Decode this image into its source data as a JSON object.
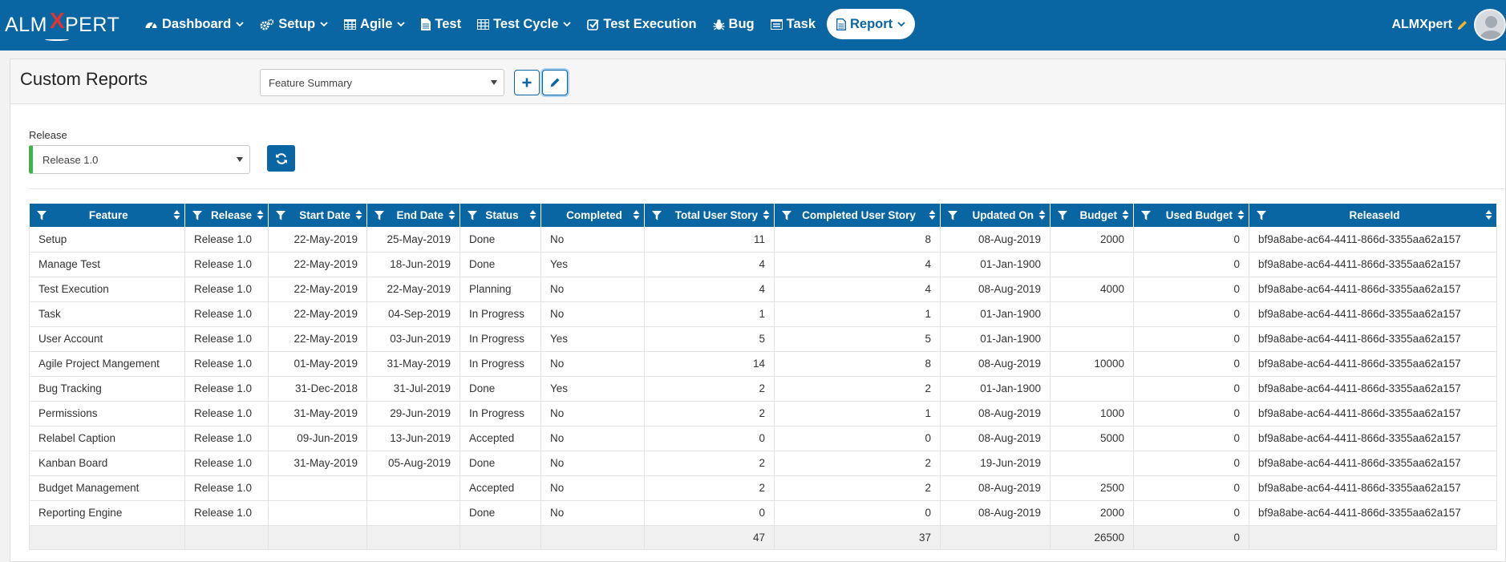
{
  "app": {
    "logo": "ALMXPERT",
    "logo_left": "ALM",
    "logo_x": "X",
    "logo_right": "PERT"
  },
  "nav": [
    {
      "label": "Dashboard",
      "icon": "dashboard-icon",
      "dropdown": true
    },
    {
      "label": "Setup",
      "icon": "cogs-icon",
      "dropdown": true
    },
    {
      "label": "Agile",
      "icon": "table-icon",
      "dropdown": true
    },
    {
      "label": "Test",
      "icon": "file-icon",
      "dropdown": false
    },
    {
      "label": "Test Cycle",
      "icon": "grid-icon",
      "dropdown": true
    },
    {
      "label": "Test Execution",
      "icon": "check-square-icon",
      "dropdown": false
    },
    {
      "label": "Bug",
      "icon": "bug-icon",
      "dropdown": false
    },
    {
      "label": "Task",
      "icon": "tasks-icon",
      "dropdown": false
    },
    {
      "label": "Report",
      "icon": "report-icon",
      "dropdown": true,
      "active": true
    }
  ],
  "user": {
    "name": "ALMXpert"
  },
  "page": {
    "title": "Custom Reports",
    "report_select": "Feature Summary",
    "release_label": "Release",
    "release_select": "Release 1.0"
  },
  "colors": {
    "primary": "#0a65a3",
    "release_marker": "#3cb44b"
  },
  "table": {
    "columns": [
      "Feature",
      "Release",
      "Start Date",
      "End Date",
      "Status",
      "Completed",
      "Total User Story",
      "Completed User Story",
      "Updated On",
      "Budget",
      "Used Budget",
      "ReleaseId"
    ],
    "rows": [
      [
        "Setup",
        "Release 1.0",
        "22-May-2019",
        "25-May-2019",
        "Done",
        "No",
        "11",
        "8",
        "08-Aug-2019",
        "2000",
        "0",
        "bf9a8abe-ac64-4411-866d-3355aa62a157"
      ],
      [
        "Manage Test",
        "Release 1.0",
        "22-May-2019",
        "18-Jun-2019",
        "Done",
        "Yes",
        "4",
        "4",
        "01-Jan-1900",
        "",
        "0",
        "bf9a8abe-ac64-4411-866d-3355aa62a157"
      ],
      [
        "Test Execution",
        "Release 1.0",
        "22-May-2019",
        "22-May-2019",
        "Planning",
        "No",
        "4",
        "4",
        "08-Aug-2019",
        "4000",
        "0",
        "bf9a8abe-ac64-4411-866d-3355aa62a157"
      ],
      [
        "Task",
        "Release 1.0",
        "22-May-2019",
        "04-Sep-2019",
        "In Progress",
        "No",
        "1",
        "1",
        "01-Jan-1900",
        "",
        "0",
        "bf9a8abe-ac64-4411-866d-3355aa62a157"
      ],
      [
        "User Account",
        "Release 1.0",
        "22-May-2019",
        "03-Jun-2019",
        "In Progress",
        "Yes",
        "5",
        "5",
        "01-Jan-1900",
        "",
        "0",
        "bf9a8abe-ac64-4411-866d-3355aa62a157"
      ],
      [
        "Agile Project Mangement",
        "Release 1.0",
        "01-May-2019",
        "31-May-2019",
        "In Progress",
        "No",
        "14",
        "8",
        "08-Aug-2019",
        "10000",
        "0",
        "bf9a8abe-ac64-4411-866d-3355aa62a157"
      ],
      [
        "Bug Tracking",
        "Release 1.0",
        "31-Dec-2018",
        "31-Jul-2019",
        "Done",
        "Yes",
        "2",
        "2",
        "01-Jan-1900",
        "",
        "0",
        "bf9a8abe-ac64-4411-866d-3355aa62a157"
      ],
      [
        "Permissions",
        "Release 1.0",
        "31-May-2019",
        "29-Jun-2019",
        "In Progress",
        "No",
        "2",
        "1",
        "08-Aug-2019",
        "1000",
        "0",
        "bf9a8abe-ac64-4411-866d-3355aa62a157"
      ],
      [
        "Relabel Caption",
        "Release 1.0",
        "09-Jun-2019",
        "13-Jun-2019",
        "Accepted",
        "No",
        "0",
        "0",
        "08-Aug-2019",
        "5000",
        "0",
        "bf9a8abe-ac64-4411-866d-3355aa62a157"
      ],
      [
        "Kanban Board",
        "Release 1.0",
        "31-May-2019",
        "05-Aug-2019",
        "Done",
        "No",
        "2",
        "2",
        "19-Jun-2019",
        "",
        "0",
        "bf9a8abe-ac64-4411-866d-3355aa62a157"
      ],
      [
        "Budget Management",
        "Release 1.0",
        "",
        "",
        "Accepted",
        "No",
        "2",
        "2",
        "08-Aug-2019",
        "2500",
        "0",
        "bf9a8abe-ac64-4411-866d-3355aa62a157"
      ],
      [
        "Reporting Engine",
        "Release 1.0",
        "",
        "",
        "Done",
        "No",
        "0",
        "0",
        "08-Aug-2019",
        "2000",
        "0",
        "bf9a8abe-ac64-4411-866d-3355aa62a157"
      ]
    ],
    "totals": [
      "",
      "",
      "",
      "",
      "",
      "",
      "47",
      "37",
      "",
      "26500",
      "0",
      ""
    ]
  }
}
